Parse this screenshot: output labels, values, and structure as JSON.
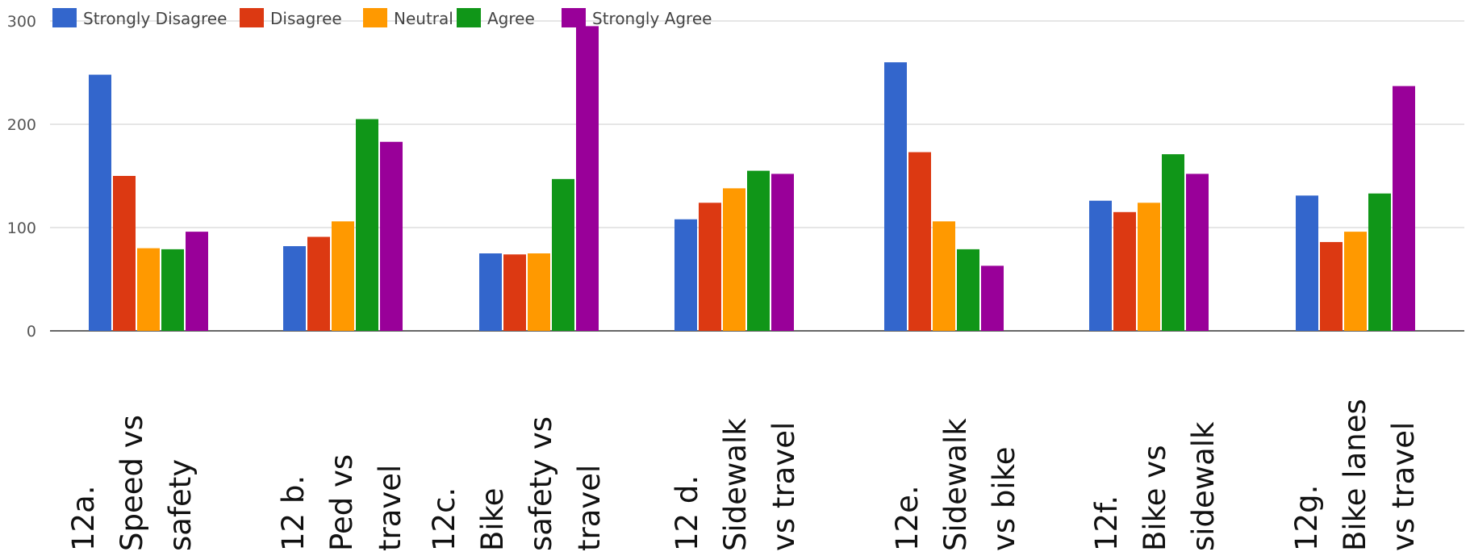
{
  "chart_data": {
    "type": "bar",
    "title": "",
    "xlabel": "",
    "ylabel": "",
    "ylim": [
      0,
      300
    ],
    "yticks": [
      "0",
      "100",
      "200",
      "300"
    ],
    "grid": true,
    "legend_position": "top-left",
    "categories": [
      [
        "12a.",
        "Speed vs",
        "safety"
      ],
      [
        "12 b.",
        "Ped vs",
        "travel"
      ],
      [
        "12c.",
        "Bike",
        "safety vs",
        "travel"
      ],
      [
        "12 d.",
        "Sidewalk",
        "vs travel"
      ],
      [
        "12e.",
        "Sidewalk",
        "vs bike"
      ],
      [
        "12f.",
        "Bike vs",
        "sidewalk"
      ],
      [
        "12g.",
        "Bike lanes",
        "vs travel"
      ]
    ],
    "series": [
      {
        "name": "Strongly Disagree",
        "color": "#3366cc",
        "values": [
          248,
          82,
          75,
          108,
          260,
          126,
          131
        ]
      },
      {
        "name": "Disagree",
        "color": "#dc3912",
        "values": [
          150,
          91,
          74,
          124,
          173,
          115,
          86
        ]
      },
      {
        "name": "Neutral",
        "color": "#ff9900",
        "values": [
          80,
          106,
          75,
          138,
          106,
          124,
          96
        ]
      },
      {
        "name": "Agree",
        "color": "#109618",
        "values": [
          79,
          205,
          147,
          155,
          79,
          171,
          133
        ]
      },
      {
        "name": "Strongly Agree",
        "color": "#990099",
        "values": [
          96,
          183,
          295,
          152,
          63,
          152,
          237
        ]
      }
    ]
  }
}
